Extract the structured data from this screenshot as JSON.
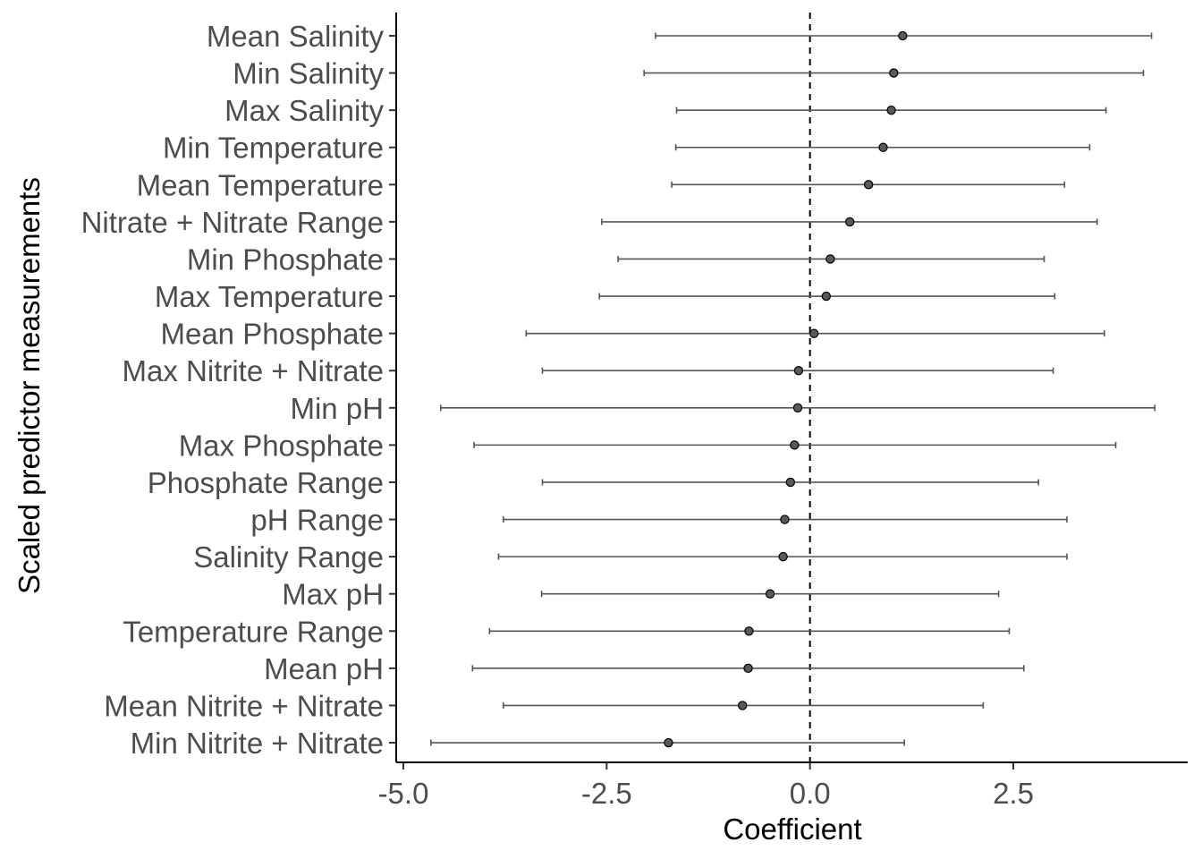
{
  "chart_data": {
    "type": "scatter",
    "subtype": "coefficient plot with horizontal error bars",
    "xlabel": "Coefficient",
    "ylabel": "Scaled predictor measurements",
    "xlim": [
      -5.0,
      4.7
    ],
    "x_ticks": [
      "-5.0",
      "-2.5",
      "0.0",
      "2.5"
    ],
    "x_tick_values": [
      -5.0,
      -2.5,
      0.0,
      2.5
    ],
    "reference_line": 0.0,
    "grid": false,
    "colors": {
      "point_fill": "#595959",
      "errbar": "#555555",
      "axis": "#000000",
      "tick_label": "#4d4d4d"
    },
    "points": [
      {
        "label": "Mean Salinity",
        "estimate": 1.14,
        "lower": -1.9,
        "upper": 4.2
      },
      {
        "label": "Min Salinity",
        "estimate": 1.03,
        "lower": -2.04,
        "upper": 4.1
      },
      {
        "label": "Max Salinity",
        "estimate": 1.0,
        "lower": -1.64,
        "upper": 3.64
      },
      {
        "label": "Min Temperature",
        "estimate": 0.9,
        "lower": -1.65,
        "upper": 3.44
      },
      {
        "label": "Mean Temperature",
        "estimate": 0.72,
        "lower": -1.7,
        "upper": 3.13
      },
      {
        "label": "Nitrate + Nitrate Range",
        "estimate": 0.49,
        "lower": -2.56,
        "upper": 3.53
      },
      {
        "label": "Min Phosphate",
        "estimate": 0.25,
        "lower": -2.36,
        "upper": 2.88
      },
      {
        "label": "Max Temperature",
        "estimate": 0.2,
        "lower": -2.59,
        "upper": 3.01
      },
      {
        "label": "Mean Phosphate",
        "estimate": 0.05,
        "lower": -3.49,
        "upper": 3.62
      },
      {
        "label": "Max Nitrite + Nitrate",
        "estimate": -0.14,
        "lower": -3.29,
        "upper": 2.99
      },
      {
        "label": "Min pH",
        "estimate": -0.15,
        "lower": -4.54,
        "upper": 4.24
      },
      {
        "label": "Max Phosphate",
        "estimate": -0.19,
        "lower": -4.13,
        "upper": 3.76
      },
      {
        "label": "Phosphate Range",
        "estimate": -0.24,
        "lower": -3.29,
        "upper": 2.81
      },
      {
        "label": "pH Range",
        "estimate": -0.31,
        "lower": -3.77,
        "upper": 3.16
      },
      {
        "label": "Salinity Range",
        "estimate": -0.33,
        "lower": -3.83,
        "upper": 3.16
      },
      {
        "label": "Max pH",
        "estimate": -0.49,
        "lower": -3.3,
        "upper": 2.32
      },
      {
        "label": "Temperature Range",
        "estimate": -0.75,
        "lower": -3.94,
        "upper": 2.45
      },
      {
        "label": "Mean pH",
        "estimate": -0.76,
        "lower": -4.15,
        "upper": 2.63
      },
      {
        "label": "Mean Nitrite + Nitrate",
        "estimate": -0.83,
        "lower": -3.77,
        "upper": 2.13
      },
      {
        "label": "Min Nitrite + Nitrate",
        "estimate": -1.74,
        "lower": -4.66,
        "upper": 1.16
      }
    ]
  }
}
